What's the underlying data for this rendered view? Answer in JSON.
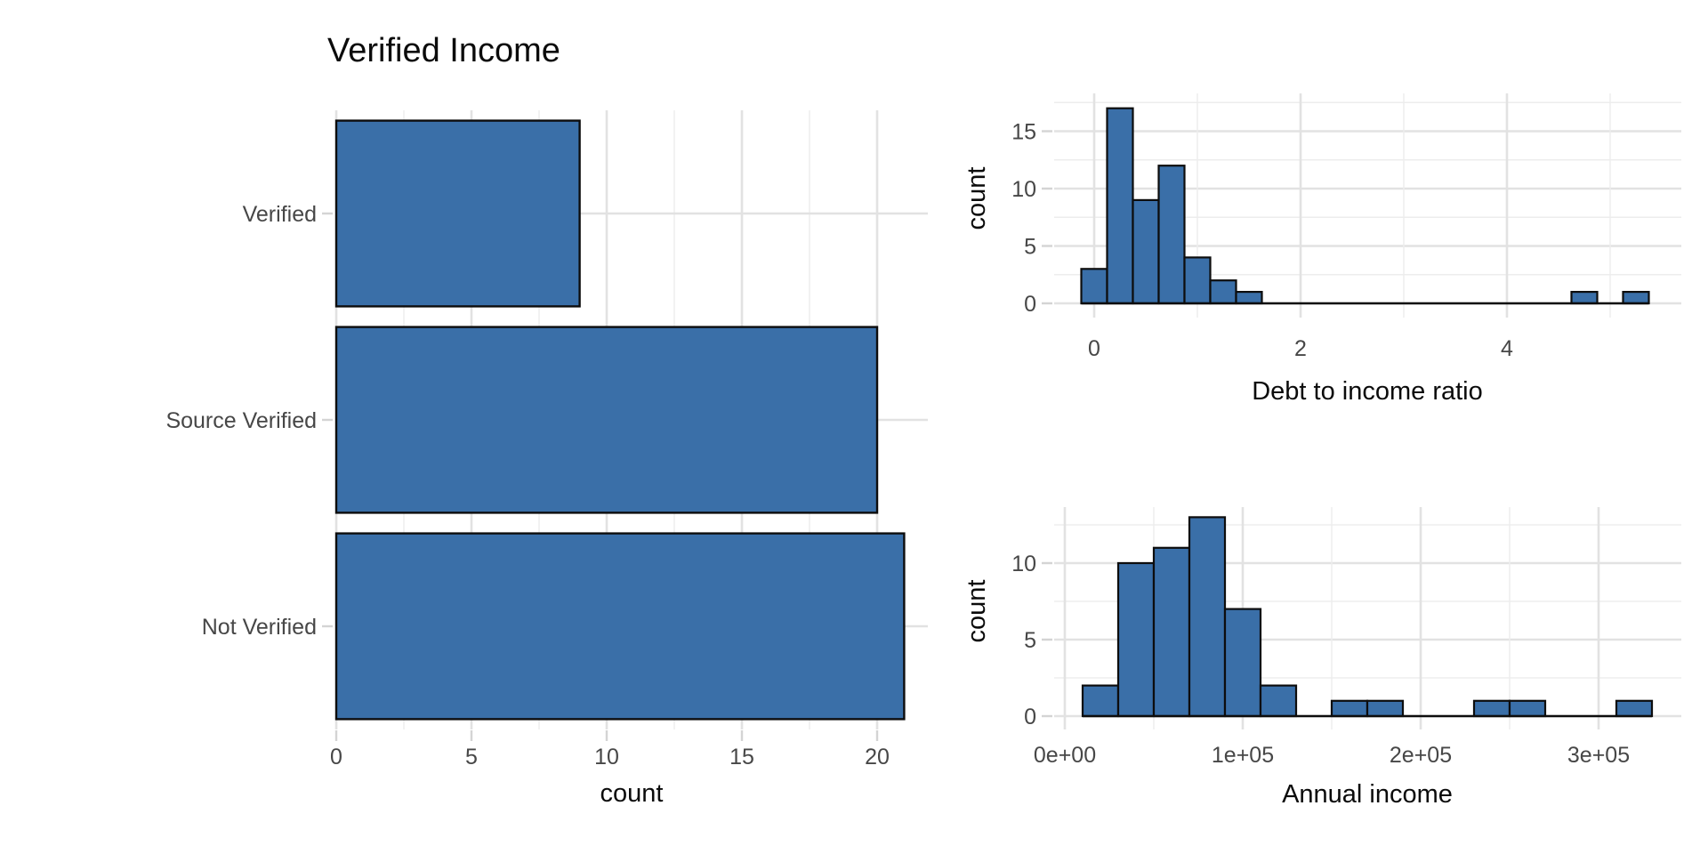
{
  "figure": {
    "background": "#FFFFFF",
    "description_title": "Verified Income"
  },
  "colors": {
    "bar_fill": "#3A6FA8",
    "bar_stroke": "#0D0D0D",
    "baseline": "#0D0D0D",
    "grid_major": "#E2E2E2",
    "grid_minor": "#EDEDED",
    "axis_text": "#474747",
    "title_text": "#0B0B0B",
    "tick_mark": "#D4D4D4"
  },
  "chart_data": [
    {
      "id": "verified-income-bar",
      "type": "bar",
      "orientation": "horizontal",
      "title": "Verified Income",
      "xlabel": "count",
      "ylabel": "",
      "categories": [
        "Verified",
        "Source Verified",
        "Not Verified"
      ],
      "values": [
        9,
        20,
        21
      ],
      "x_ticks": [
        0,
        5,
        10,
        15,
        20
      ],
      "x_tick_labels": [
        "0",
        "5",
        "10",
        "15",
        "20"
      ],
      "x_minor_ticks": [
        2.5,
        7.5,
        12.5,
        17.5
      ],
      "xlim": [
        0,
        21.9
      ],
      "grid": true,
      "legend": "none"
    },
    {
      "id": "debt-to-income-histogram",
      "type": "histogram",
      "title": "",
      "xlabel": "Debt to income ratio",
      "ylabel": "count",
      "bin_start": -0.125,
      "bin_width": 0.25,
      "counts": [
        3,
        17,
        9,
        12,
        4,
        2,
        1,
        0,
        0,
        0,
        0,
        0,
        0,
        0,
        0,
        0,
        0,
        0,
        0,
        1,
        0,
        1
      ],
      "x_ticks": [
        0,
        2,
        4
      ],
      "x_tick_labels": [
        "0",
        "2",
        "4"
      ],
      "x_minor_ticks": [
        1,
        3,
        5
      ],
      "y_ticks": [
        0,
        5,
        10,
        15
      ],
      "y_tick_labels": [
        "0",
        "5",
        "10",
        "15"
      ],
      "y_minor_ticks": [
        2.5,
        7.5,
        12.5,
        17.5
      ],
      "xlim": [
        -0.51,
        5.68
      ],
      "ylim": [
        0,
        18.3
      ],
      "grid": true,
      "legend": "none"
    },
    {
      "id": "annual-income-histogram",
      "type": "histogram",
      "title": "",
      "xlabel": "Annual income",
      "ylabel": "count",
      "bin_start": 10000,
      "bin_width": 20000,
      "counts": [
        2,
        10,
        11,
        13,
        7,
        2,
        0,
        1,
        1,
        0,
        0,
        1,
        1,
        0,
        0,
        1
      ],
      "x_ticks": [
        0,
        100000,
        200000,
        300000
      ],
      "x_tick_labels": [
        "0e+00",
        "1e+05",
        "2e+05",
        "3e+05"
      ],
      "x_minor_ticks": [
        50000,
        150000,
        250000
      ],
      "y_ticks": [
        0,
        5,
        10
      ],
      "y_tick_labels": [
        "0",
        "5",
        "10"
      ],
      "y_minor_ticks": [
        2.5,
        7.5,
        12.5
      ],
      "xlim": [
        -12000,
        352500
      ],
      "ylim": [
        0,
        13.66
      ],
      "grid": true,
      "legend": "none"
    }
  ]
}
